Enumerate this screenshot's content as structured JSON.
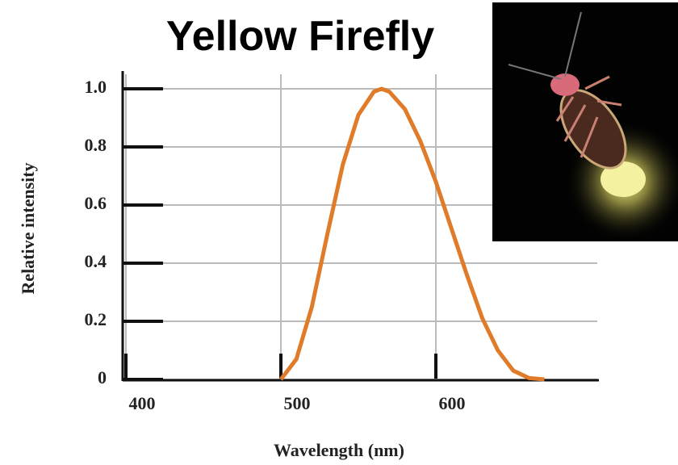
{
  "chart_data": {
    "type": "line",
    "title": "Yellow Firefly",
    "x_label": "Wavelength (nm)",
    "y_label": "Relative intensity",
    "x": [
      500,
      510,
      520,
      530,
      540,
      550,
      560,
      565,
      570,
      580,
      590,
      600,
      610,
      620,
      630,
      640,
      650,
      660,
      670
    ],
    "series": [
      {
        "color": "#e07b2a",
        "values": [
          0,
          0.07,
          0.25,
          0.5,
          0.74,
          0.91,
          0.99,
          1.0,
          0.99,
          0.93,
          0.82,
          0.68,
          0.52,
          0.36,
          0.21,
          0.1,
          0.03,
          0.005,
          0
        ]
      }
    ],
    "xlim": [
      400,
      700
    ],
    "xticks": [
      400,
      500,
      600
    ],
    "ylim": [
      0,
      1.05
    ],
    "yticks": [
      0,
      0.2,
      0.4,
      0.6,
      0.8,
      {
        "value": 1.0,
        "label": "1.0"
      }
    ],
    "grid": true
  }
}
